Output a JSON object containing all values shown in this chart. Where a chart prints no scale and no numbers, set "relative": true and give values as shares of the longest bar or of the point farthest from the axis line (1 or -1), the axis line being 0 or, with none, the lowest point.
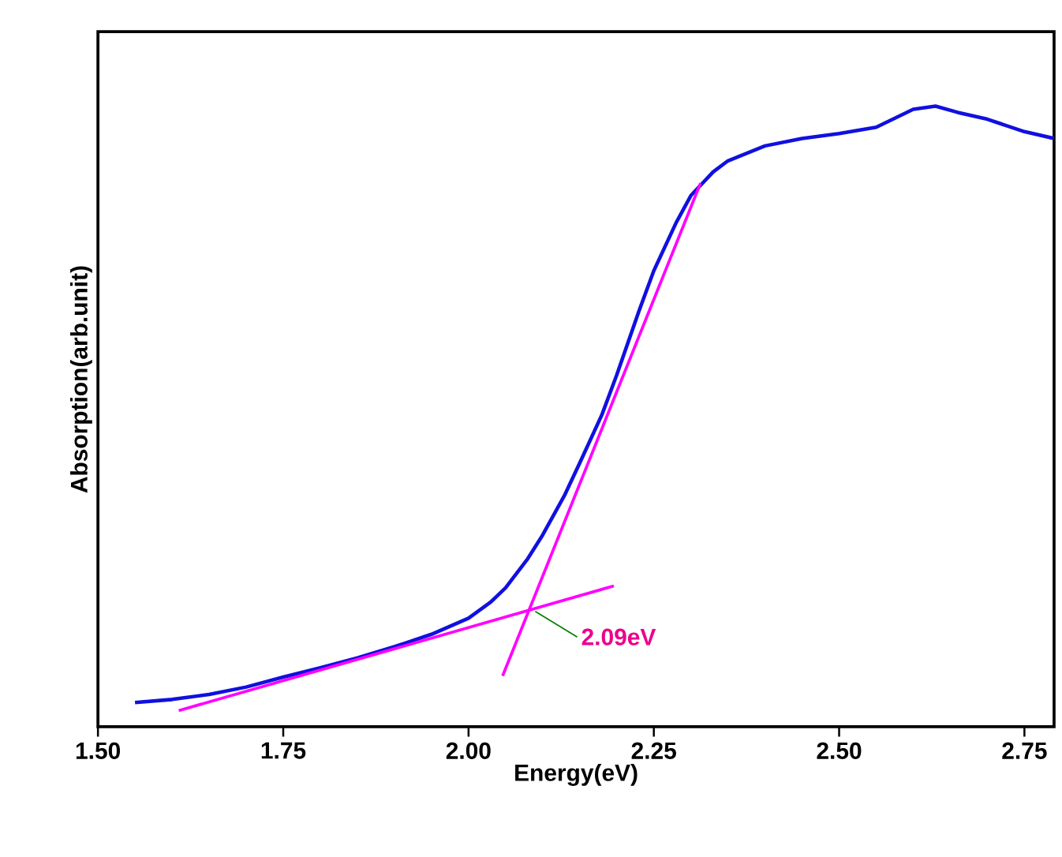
{
  "chart_data": {
    "type": "line",
    "relative": true,
    "xlabel": "Energy(eV)",
    "ylabel": "Absorption(arb.unit)",
    "xlim": [
      1.5,
      2.79
    ],
    "xticks": [
      {
        "value": 1.5,
        "label": "1.50"
      },
      1.75,
      {
        "value": 2.0,
        "label": "2.00"
      },
      2.25,
      {
        "value": 2.5,
        "label": "2.50"
      },
      2.75
    ],
    "series": [
      {
        "color": "#1010e0",
        "x": [
          1.55,
          1.6,
          1.65,
          1.7,
          1.75,
          1.8,
          1.85,
          1.9,
          1.95,
          2.0,
          2.03,
          2.05,
          2.08,
          2.1,
          2.13,
          2.15,
          2.18,
          2.2,
          2.23,
          2.25,
          2.28,
          2.3,
          2.33,
          2.35,
          2.4,
          2.45,
          2.5,
          2.55,
          2.6,
          2.63,
          2.66,
          2.7,
          2.75,
          2.79
        ],
        "values": [
          0.039,
          0.044,
          0.052,
          0.064,
          0.08,
          0.095,
          0.111,
          0.129,
          0.149,
          0.175,
          0.201,
          0.224,
          0.271,
          0.309,
          0.374,
          0.425,
          0.503,
          0.567,
          0.67,
          0.735,
          0.812,
          0.856,
          0.894,
          0.912,
          0.936,
          0.948,
          0.956,
          0.966,
          0.995,
          1.0,
          0.99,
          0.979,
          0.959,
          0.948
        ]
      },
      {
        "color": "#ff00ff",
        "x": [
          1.609,
          2.196
        ],
        "values": [
          0.026,
          0.227
        ]
      },
      {
        "color": "#ff00ff",
        "x": [
          2.046,
          2.313
        ],
        "values": [
          0.082,
          0.876
        ]
      }
    ],
    "annotations": [
      {
        "text": "2.09eV",
        "x": 2.09,
        "y": 0.186
      }
    ],
    "grid": false,
    "marker": "none",
    "line_style": "solid"
  }
}
